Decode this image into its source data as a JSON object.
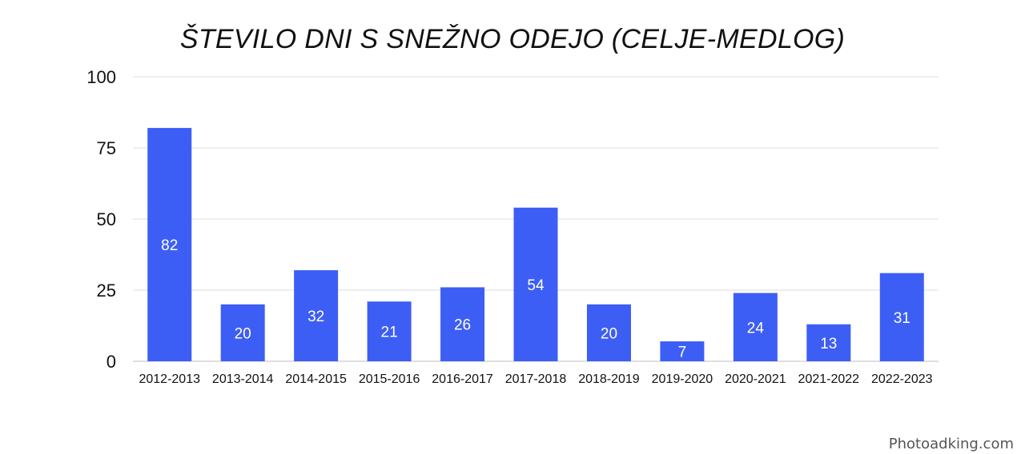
{
  "chart_data": {
    "type": "bar",
    "title": "ŠTEVILO DNI S SNEŽNO ODEJO (CELJE-MEDLOG)",
    "xlabel": "",
    "ylabel": "",
    "categories": [
      "2012-2013",
      "2013-2014",
      "2014-2015",
      "2015-2016",
      "2016-2017",
      "2017-2018",
      "2018-2019",
      "2019-2020",
      "2020-2021",
      "2021-2022",
      "2022-2023"
    ],
    "values": [
      82,
      20,
      32,
      21,
      26,
      54,
      20,
      7,
      24,
      13,
      31
    ],
    "ylim": [
      0,
      100
    ],
    "yticks": [
      "0",
      "25",
      "50",
      "75",
      "100"
    ],
    "grid": true,
    "data_labels": true,
    "bar_color": "#3d5ef5",
    "label_color": "#ffffff"
  },
  "watermark": "Photoadking.com"
}
